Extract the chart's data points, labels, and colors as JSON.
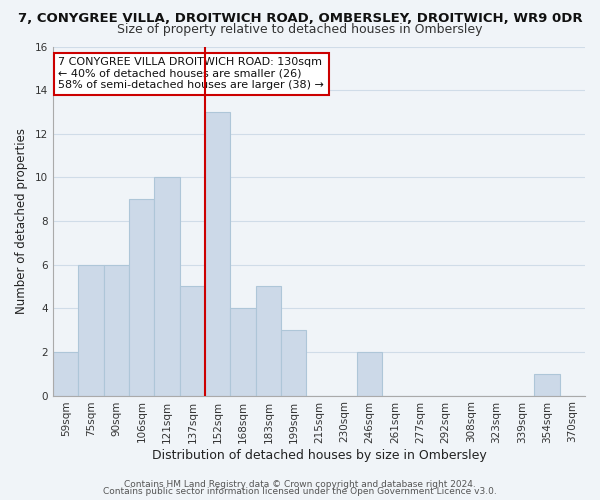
{
  "title_line1": "7, CONYGREE VILLA, DROITWICH ROAD, OMBERSLEY, DROITWICH, WR9 0DR",
  "title_line2": "Size of property relative to detached houses in Ombersley",
  "xlabel": "Distribution of detached houses by size in Ombersley",
  "ylabel": "Number of detached properties",
  "bar_labels": [
    "59sqm",
    "75sqm",
    "90sqm",
    "106sqm",
    "121sqm",
    "137sqm",
    "152sqm",
    "168sqm",
    "183sqm",
    "199sqm",
    "215sqm",
    "230sqm",
    "246sqm",
    "261sqm",
    "277sqm",
    "292sqm",
    "308sqm",
    "323sqm",
    "339sqm",
    "354sqm",
    "370sqm"
  ],
  "bar_values": [
    2,
    6,
    6,
    9,
    10,
    5,
    13,
    4,
    5,
    3,
    0,
    0,
    2,
    0,
    0,
    0,
    0,
    0,
    0,
    1,
    0
  ],
  "bar_color": "#ccd9e8",
  "bar_edge_color": "#aec6d8",
  "grid_color": "#d0dce8",
  "reference_line_color": "#cc0000",
  "annotation_text": "7 CONYGREE VILLA DROITWICH ROAD: 130sqm\n← 40% of detached houses are smaller (26)\n58% of semi-detached houses are larger (38) →",
  "annotation_box_color": "#ffffff",
  "annotation_box_edge_color": "#cc0000",
  "ylim": [
    0,
    16
  ],
  "yticks": [
    0,
    2,
    4,
    6,
    8,
    10,
    12,
    14,
    16
  ],
  "footer_line1": "Contains HM Land Registry data © Crown copyright and database right 2024.",
  "footer_line2": "Contains public sector information licensed under the Open Government Licence v3.0.",
  "background_color": "#f0f4f8",
  "title1_fontsize": 9.5,
  "title2_fontsize": 9.0,
  "xlabel_fontsize": 9.0,
  "ylabel_fontsize": 8.5,
  "tick_fontsize": 7.5,
  "annotation_fontsize": 8.0,
  "footer_fontsize": 6.5
}
